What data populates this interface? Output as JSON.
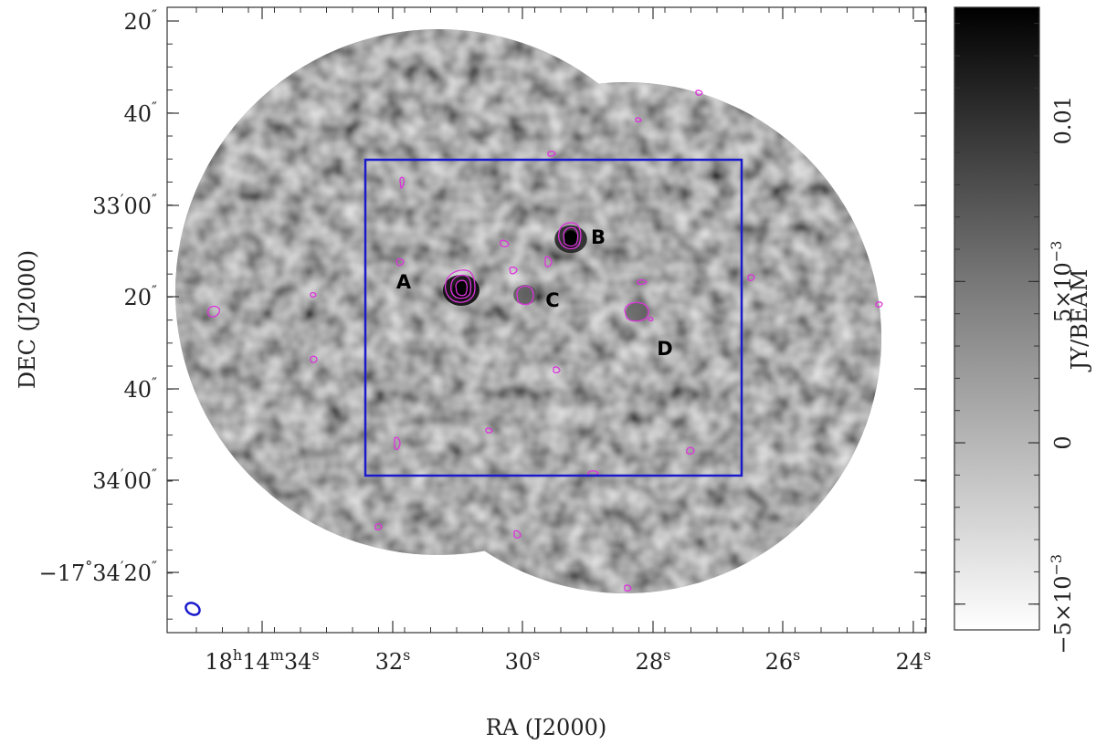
{
  "chart_data": {
    "type": "heatmap",
    "title": "",
    "xlabel": "RA (J2000)",
    "ylabel": "DEC (J2000)",
    "colorbar_label": "JY/BEAM",
    "x_ticks": [
      {
        "label": "18h14m34s",
        "parts": [
          "18",
          "h",
          "14",
          "m",
          "34",
          "s"
        ]
      },
      {
        "label": "32s",
        "parts": [
          "32",
          "s"
        ]
      },
      {
        "label": "30s",
        "parts": [
          "30",
          "s"
        ]
      },
      {
        "label": "28s",
        "parts": [
          "28",
          "s"
        ]
      },
      {
        "label": "26s",
        "parts": [
          "26",
          "s"
        ]
      },
      {
        "label": "24s",
        "parts": [
          "24",
          "s"
        ]
      }
    ],
    "y_ticks": [
      {
        "label": "20\"",
        "parts": [
          "20",
          "″"
        ]
      },
      {
        "label": "40\"",
        "parts": [
          "40",
          "″"
        ]
      },
      {
        "label": "33'00\"",
        "parts": [
          "33",
          "′",
          "00",
          "″"
        ]
      },
      {
        "label": "20\"",
        "parts": [
          "20",
          "″"
        ]
      },
      {
        "label": "40\"",
        "parts": [
          "40",
          "″"
        ]
      },
      {
        "label": "34'00\"",
        "parts": [
          "34",
          "′",
          "00",
          "″"
        ]
      },
      {
        "label": "-17°34'20\"",
        "parts": [
          "−17",
          "°",
          "34",
          "′",
          "20",
          "″"
        ]
      }
    ],
    "colorbar_ticks": [
      {
        "label": "0.01",
        "value": 0.01
      },
      {
        "label": "5×10⁻³",
        "value": 0.005,
        "mant": "5×10",
        "exp": "−3"
      },
      {
        "label": "0",
        "value": 0
      },
      {
        "label": "−5×10⁻³",
        "value": -0.005,
        "mant": "−5×10",
        "exp": "−3"
      }
    ],
    "colorbar_range": [
      -0.0058,
      0.0135
    ],
    "sources": [
      {
        "name": "A",
        "peak": 0.0135
      },
      {
        "name": "B",
        "peak": 0.011
      },
      {
        "name": "C",
        "peak": 0.0055
      },
      {
        "name": "D",
        "peak": 0.0045
      }
    ],
    "colors": {
      "contour": "#dd33dd",
      "box": "#1a1acc",
      "beam": "#1a1acc",
      "frame": "#333333"
    },
    "legend": "none",
    "grid": false
  }
}
